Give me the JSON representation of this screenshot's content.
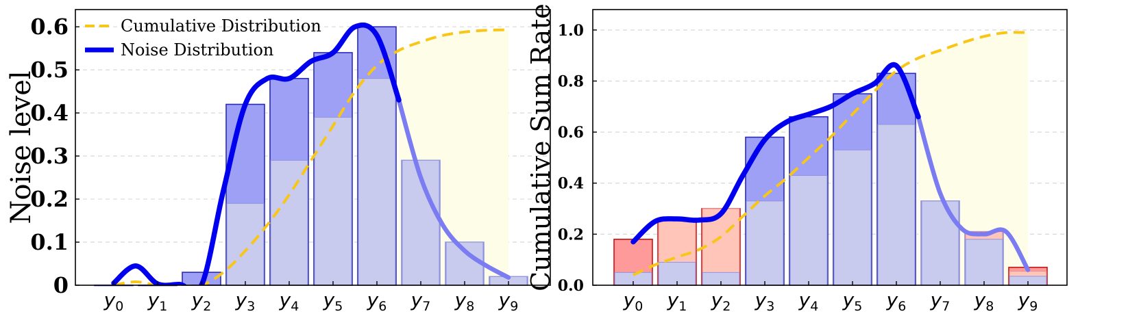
{
  "chart_data": [
    {
      "type": "bar",
      "categories": [
        "y0",
        "y1",
        "y2",
        "y3",
        "y4",
        "y5",
        "y6",
        "y7",
        "y8",
        "y9"
      ],
      "values": [
        0.0,
        0.0,
        0.03,
        0.42,
        0.48,
        0.54,
        0.6,
        0.29,
        0.1,
        0.02
      ],
      "cumulative_overlay": [
        0.0,
        0.0,
        0.0,
        0.19,
        0.29,
        0.39,
        0.48,
        0.29,
        0.1,
        0.02
      ],
      "noise_curve": {
        "name": "Noise Distribution",
        "x": [
          0.0,
          0.5,
          1.0,
          1.5,
          2.0,
          2.5,
          3.0,
          3.5,
          4.0,
          4.5,
          5.0,
          5.5,
          6.0,
          6.5,
          7.0,
          7.5,
          8.0,
          8.5,
          9.0
        ],
        "y": [
          0.005,
          0.045,
          0.003,
          0.002,
          0.0,
          0.22,
          0.42,
          0.48,
          0.48,
          0.52,
          0.54,
          0.6,
          0.58,
          0.43,
          0.25,
          0.14,
          0.08,
          0.045,
          0.018
        ]
      },
      "cumulative_curve": {
        "name": "Cumulative Distribution",
        "x": [
          0.0,
          0.5,
          1.0,
          1.5,
          2.0,
          2.5,
          3.0,
          3.5,
          4.0,
          4.5,
          5.0,
          5.5,
          6.0,
          6.5,
          7.0,
          7.5,
          8.0,
          8.5,
          9.0
        ],
        "y": [
          0.0,
          0.008,
          0.0,
          0.0,
          0.0,
          0.03,
          0.08,
          0.14,
          0.21,
          0.29,
          0.37,
          0.45,
          0.51,
          0.545,
          0.565,
          0.58,
          0.588,
          0.592,
          0.593
        ]
      },
      "title": "",
      "xlabel": "",
      "ylabel": "Noise level",
      "ylim": [
        0,
        0.64
      ],
      "yticks": [
        "0",
        "0.1",
        "0.2",
        "0.3",
        "0.4",
        "0.5",
        "0.6"
      ],
      "grid": true,
      "legend": {
        "placement": "top-left",
        "entries": [
          "Cumulative Distribution",
          "Noise Distribution"
        ]
      }
    },
    {
      "type": "bar",
      "categories": [
        "y0",
        "y1",
        "y2",
        "y3",
        "y4",
        "y5",
        "y6",
        "y7",
        "y8",
        "y9"
      ],
      "values": [
        0.18,
        0.26,
        0.3,
        0.58,
        0.66,
        0.75,
        0.83,
        0.33,
        0.21,
        0.07
      ],
      "cumulative_overlay": [
        0.05,
        0.09,
        0.05,
        0.33,
        0.43,
        0.53,
        0.63,
        0.33,
        0.18,
        0.035
      ],
      "red_segment": [
        0.18,
        0.26,
        0.3,
        0.0,
        0.0,
        0.0,
        0.0,
        0.0,
        0.0,
        0.07
      ],
      "red_overlay": [
        0.05,
        0.26,
        0.3,
        0.0,
        0.0,
        0.0,
        0.0,
        0.0,
        0.21,
        0.055
      ],
      "noise_curve": {
        "name": "Noise Distribution",
        "x": [
          0.0,
          0.5,
          1.0,
          1.5,
          2.0,
          2.5,
          3.0,
          3.5,
          4.0,
          4.5,
          5.0,
          5.5,
          6.0,
          6.5,
          7.0,
          7.5,
          8.0,
          8.5,
          9.0
        ],
        "y": [
          0.17,
          0.25,
          0.26,
          0.255,
          0.28,
          0.43,
          0.57,
          0.64,
          0.67,
          0.7,
          0.75,
          0.79,
          0.86,
          0.66,
          0.36,
          0.22,
          0.2,
          0.21,
          0.06
        ]
      },
      "cumulative_curve": {
        "name": "Cumulative Distribution",
        "x": [
          0.0,
          0.5,
          1.0,
          1.5,
          2.0,
          2.5,
          3.0,
          3.5,
          4.0,
          4.5,
          5.0,
          5.5,
          6.0,
          6.5,
          7.0,
          7.5,
          8.0,
          8.5,
          9.0
        ],
        "y": [
          0.04,
          0.08,
          0.11,
          0.14,
          0.19,
          0.27,
          0.35,
          0.42,
          0.5,
          0.58,
          0.67,
          0.76,
          0.84,
          0.89,
          0.92,
          0.95,
          0.975,
          0.99,
          0.99
        ]
      },
      "title": "",
      "xlabel": "",
      "ylabel": "Cumulative Sum Rate",
      "ylim": [
        0,
        1.08
      ],
      "yticks": [
        "0.0",
        "0.2",
        "0.4",
        "0.6",
        "0.8",
        "1.0"
      ],
      "grid": true
    }
  ],
  "colors": {
    "bar_fill": "#9da0f5",
    "bar_edge": "#2a2ab8",
    "overlay_fill": "#c9cbee",
    "overlay_edge": "#8f92e0",
    "red_fill": "#ff9a9a",
    "red_edge": "#cc1111",
    "red_overlay_fill": "#ffc5b8",
    "noise_line": "#0000ee",
    "noise_line_light": "#7b7cf2",
    "cumulative_line": "#f7c619",
    "cumulative_fill": "#fdfde8",
    "grid": "#d8d8d8"
  }
}
